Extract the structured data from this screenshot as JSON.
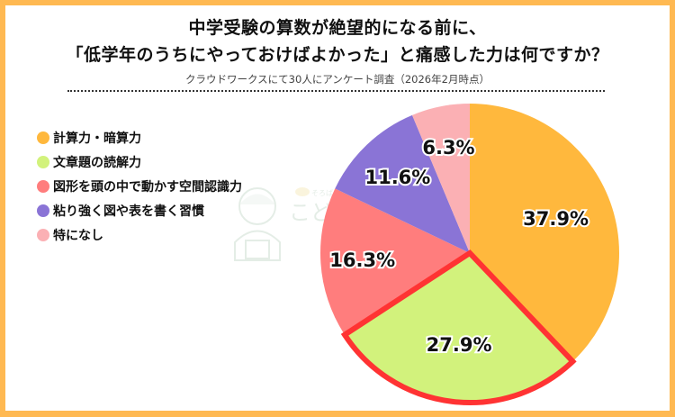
{
  "header": {
    "title_line1": "中学受験の算数が絶望的になる前に、",
    "title_line2": "「低学年のうちにやっておけばよかった」と痛感した力は何ですか？",
    "subtitle": "クラウドワークスにて30人にアンケート調査（2026年2月時点）"
  },
  "watermark": {
    "text": "こども",
    "small_text": "そろばん"
  },
  "legend": [
    {
      "label": "計算力・暗算力",
      "color": "#FFB83D"
    },
    {
      "label": "文章題の読解力",
      "color": "#D2F27C"
    },
    {
      "label": "図形を頭の中で動かす空間認識力",
      "color": "#FF7D7D"
    },
    {
      "label": "粘り強く図や表を書く習慣",
      "color": "#8A74D6"
    },
    {
      "label": "特になし",
      "color": "#FBB0B4"
    }
  ],
  "colors": {
    "frame": "#FFB952",
    "highlight_outline": "#FF3333"
  },
  "chart_data": {
    "type": "pie",
    "title": "中学受験の算数が絶望的になる前に、「低学年のうちにやっておけばよかった」と痛感した力は何ですか？",
    "subtitle": "クラウドワークスにて30人にアンケート調査（2026年2月時点）",
    "categories": [
      "計算力・暗算力",
      "文章題の読解力",
      "図形を頭の中で動かす空間認識力",
      "粘り強く図や表を書く習慣",
      "特になし"
    ],
    "values": [
      37.9,
      27.9,
      16.3,
      11.6,
      6.3
    ],
    "labels": [
      "37.9%",
      "27.9%",
      "16.3%",
      "11.6%",
      "6.3%"
    ],
    "colors": [
      "#FFB83D",
      "#D2F27C",
      "#FF7D7D",
      "#8A74D6",
      "#FBB0B4"
    ],
    "highlighted": "文章題の読解力",
    "start_angle": "12 o'clock, clockwise",
    "legend_position": "left"
  }
}
